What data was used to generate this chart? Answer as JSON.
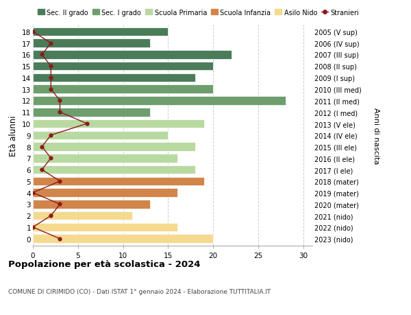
{
  "ages": [
    18,
    17,
    16,
    15,
    14,
    13,
    12,
    11,
    10,
    9,
    8,
    7,
    6,
    5,
    4,
    3,
    2,
    1,
    0
  ],
  "right_labels": [
    "2005 (V sup)",
    "2006 (IV sup)",
    "2007 (III sup)",
    "2008 (II sup)",
    "2009 (I sup)",
    "2010 (III med)",
    "2011 (II med)",
    "2012 (I med)",
    "2013 (V ele)",
    "2014 (IV ele)",
    "2015 (III ele)",
    "2016 (II ele)",
    "2017 (I ele)",
    "2018 (mater)",
    "2019 (mater)",
    "2020 (mater)",
    "2021 (nido)",
    "2022 (nido)",
    "2023 (nido)"
  ],
  "bar_values": [
    15,
    13,
    22,
    20,
    18,
    20,
    28,
    13,
    19,
    15,
    18,
    16,
    18,
    19,
    16,
    13,
    11,
    16,
    20
  ],
  "bar_colors": [
    "#4a7c59",
    "#4a7c59",
    "#4a7c59",
    "#4a7c59",
    "#4a7c59",
    "#6e9e6e",
    "#6e9e6e",
    "#6e9e6e",
    "#b8d9a0",
    "#b8d9a0",
    "#b8d9a0",
    "#b8d9a0",
    "#b8d9a0",
    "#d2854a",
    "#d2854a",
    "#d2854a",
    "#f5d98e",
    "#f5d98e",
    "#f5d98e"
  ],
  "stranieri_values": [
    0,
    2,
    1,
    2,
    2,
    2,
    3,
    3,
    6,
    2,
    1,
    2,
    1,
    3,
    0,
    3,
    2,
    0,
    3
  ],
  "title": "Popolazione per età scolastica - 2024",
  "subtitle": "COMUNE DI CIRIMIDO (CO) - Dati ISTAT 1° gennaio 2024 - Elaborazione TUTTITALIA.IT",
  "ylabel": "Età alunni",
  "right_ylabel": "Anni di nascita",
  "xlim": [
    0,
    31
  ],
  "xticks": [
    0,
    5,
    10,
    15,
    20,
    25,
    30
  ],
  "legend_items": [
    {
      "label": "Sec. II grado",
      "color": "#4a7c59"
    },
    {
      "label": "Sec. I grado",
      "color": "#6e9e6e"
    },
    {
      "label": "Scuola Primaria",
      "color": "#b8d9a0"
    },
    {
      "label": "Scuola Infanzia",
      "color": "#d2854a"
    },
    {
      "label": "Asilo Nido",
      "color": "#f5d98e"
    },
    {
      "label": "Stranieri",
      "color": "#8b1a1a"
    }
  ],
  "bg_color": "#ffffff",
  "grid_color": "#cccccc",
  "bar_height": 0.75
}
